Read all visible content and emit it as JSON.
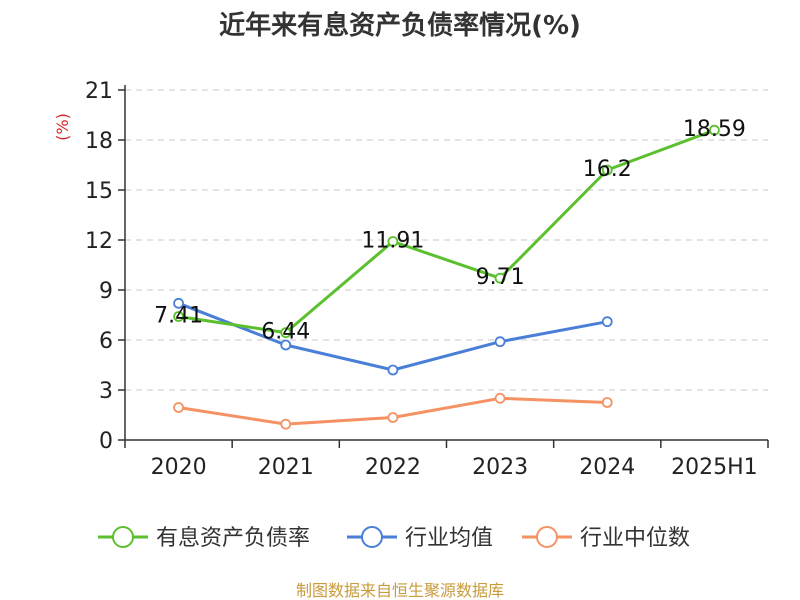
{
  "chart_data": {
    "type": "line",
    "title": "近年来有息资产负债率情况(%)",
    "ylabel": "(%)",
    "xlabel": "",
    "categories": [
      "2020",
      "2021",
      "2022",
      "2023",
      "2024",
      "2025H1"
    ],
    "ylim": [
      0,
      21
    ],
    "yticks": [
      0,
      3,
      6,
      9,
      12,
      15,
      18,
      21
    ],
    "grid": true,
    "legend_position": "bottom",
    "series": [
      {
        "name": "有息资产负债率",
        "color": "#5cc02e",
        "values": [
          7.41,
          6.44,
          11.91,
          9.71,
          16.2,
          18.59
        ],
        "labels": [
          "7.41",
          "6.44",
          "11.91",
          "9.71",
          "16.2",
          "18.59"
        ]
      },
      {
        "name": "行业均值",
        "color": "#4a7fd8",
        "values": [
          8.2,
          5.7,
          4.2,
          5.9,
          7.1,
          null
        ]
      },
      {
        "name": "行业中位数",
        "color": "#f59264",
        "values": [
          1.95,
          0.95,
          1.35,
          2.5,
          2.25,
          null
        ]
      }
    ]
  },
  "source": "制图数据来自恒生聚源数据库"
}
